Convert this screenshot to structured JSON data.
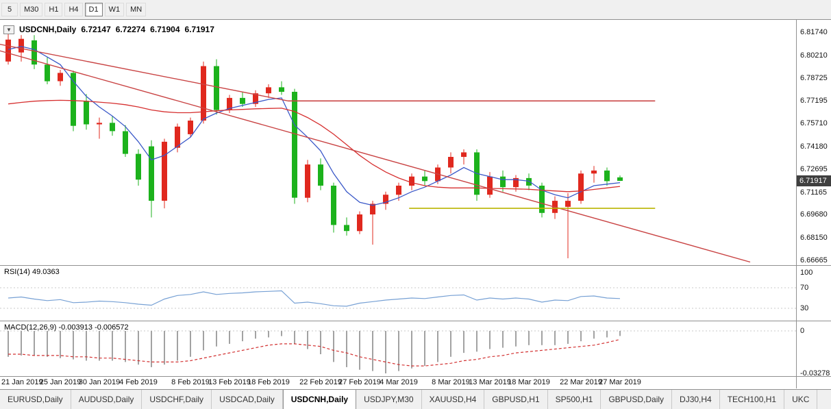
{
  "colors": {
    "candle_up": "#e0281e",
    "candle_down": "#1cb21c",
    "ma_fast": "#3a58c8",
    "ma_slow": "#d62f2f",
    "trendline": "#c94444",
    "hline_red": "#c94444",
    "hline_yellow": "#b9b400",
    "rsi_line": "#76a0d4",
    "macd_bar": "#a2a2a2",
    "macd_signal": "#d23030",
    "badge_bg": "#3f3f3f",
    "chrome_bg": "#f0f0f0"
  },
  "toolbar": {
    "items": [
      {
        "label": "5",
        "selected": false
      },
      {
        "label": "M30",
        "selected": false
      },
      {
        "label": "H1",
        "selected": false
      },
      {
        "label": "H4",
        "selected": false
      },
      {
        "label": "D1",
        "selected": true
      },
      {
        "label": "W1",
        "selected": false
      },
      {
        "label": "MN",
        "selected": false
      }
    ]
  },
  "main_chart": {
    "symbol_period": "USDCNH,Daily",
    "open": "6.72147",
    "high": "6.72274",
    "low": "6.71904",
    "close": "6.71917",
    "price_axis": [
      "6.81740",
      "6.80210",
      "6.78725",
      "6.77195",
      "6.75710",
      "6.74180",
      "6.72695",
      "6.71165",
      "6.69680",
      "6.68150",
      "6.66665"
    ],
    "price_badge": "6.71917",
    "collapse_glyph": "▼"
  },
  "rsi_panel": {
    "label": "RSI(14) 49.0363",
    "axis_labels": [
      "100",
      "70",
      "30"
    ],
    "levels": [
      70,
      30
    ]
  },
  "macd_panel": {
    "label": "MACD(12,26,9) -0.003913 -0.006572",
    "axis_top": "0",
    "axis_bottom": "-0.03278"
  },
  "date_axis": [
    {
      "label": "21 Jan 2019",
      "i": 0
    },
    {
      "label": "25 Jan 2019",
      "i": 4
    },
    {
      "label": "30 Jan 2019",
      "i": 7
    },
    {
      "label": "4 Feb 2019",
      "i": 10
    },
    {
      "label": "8 Feb 2019",
      "i": 14
    },
    {
      "label": "13 Feb 2019",
      "i": 17
    },
    {
      "label": "18 Feb 2019",
      "i": 20
    },
    {
      "label": "22 Feb 2019",
      "i": 24
    },
    {
      "label": "27 Feb 2019",
      "i": 27
    },
    {
      "label": "4 Mar 2019",
      "i": 30
    },
    {
      "label": "8 Mar 2019",
      "i": 34
    },
    {
      "label": "13 Mar 2019",
      "i": 37
    },
    {
      "label": "18 Mar 2019",
      "i": 40
    },
    {
      "label": "22 Mar 2019",
      "i": 44
    },
    {
      "label": "27 Mar 2019",
      "i": 47
    }
  ],
  "tabs": [
    {
      "label": "EURUSD,Daily",
      "selected": false
    },
    {
      "label": "AUDUSD,Daily",
      "selected": false
    },
    {
      "label": "USDCHF,Daily",
      "selected": false
    },
    {
      "label": "USDCAD,Daily",
      "selected": false
    },
    {
      "label": "USDCNH,Daily",
      "selected": true
    },
    {
      "label": "USDJPY,M30",
      "selected": false
    },
    {
      "label": "XAUUSD,H4",
      "selected": false
    },
    {
      "label": "GBPUSD,H1",
      "selected": false
    },
    {
      "label": "SP500,H1",
      "selected": false
    },
    {
      "label": "GBPUSD,Daily",
      "selected": false
    },
    {
      "label": "DJ30,H4",
      "selected": false
    },
    {
      "label": "TECH100,H1",
      "selected": false
    },
    {
      "label": "UKC",
      "selected": false
    }
  ],
  "chart_data": {
    "type": "candlestick",
    "symbol": "USDCNH",
    "timeframe": "Daily",
    "price_range": [
      6.66665,
      6.8174
    ],
    "last_ohlc": {
      "open": 6.72147,
      "high": 6.72274,
      "low": 6.71904,
      "close": 6.71917
    },
    "candles_ohlc": [
      [
        6.798,
        6.8165,
        6.796,
        6.8125
      ],
      [
        6.804,
        6.8155,
        6.798,
        6.813
      ],
      [
        6.812,
        6.8155,
        6.793,
        6.796
      ],
      [
        6.796,
        6.801,
        6.783,
        6.785
      ],
      [
        6.785,
        6.7925,
        6.782,
        6.7905
      ],
      [
        6.7905,
        6.792,
        6.752,
        6.7555
      ],
      [
        6.772,
        6.7765,
        6.753,
        6.7565
      ],
      [
        6.7565,
        6.761,
        6.747,
        6.7575
      ],
      [
        6.7575,
        6.762,
        6.749,
        6.752
      ],
      [
        6.752,
        6.756,
        6.735,
        6.737
      ],
      [
        6.737,
        6.74,
        6.716,
        6.72
      ],
      [
        6.742,
        6.746,
        6.695,
        6.706
      ],
      [
        6.706,
        6.747,
        6.701,
        6.745
      ],
      [
        6.741,
        6.757,
        6.738,
        6.755
      ],
      [
        6.75,
        6.761,
        6.748,
        6.759
      ],
      [
        6.759,
        6.798,
        6.757,
        6.795
      ],
      [
        6.795,
        6.7995,
        6.763,
        6.766
      ],
      [
        6.766,
        6.776,
        6.764,
        6.774
      ],
      [
        6.774,
        6.778,
        6.768,
        6.77
      ],
      [
        6.77,
        6.779,
        6.768,
        6.777
      ],
      [
        6.777,
        6.783,
        6.774,
        6.781
      ],
      [
        6.781,
        6.785,
        6.776,
        6.778
      ],
      [
        6.778,
        6.78,
        6.704,
        6.708
      ],
      [
        6.708,
        6.733,
        6.705,
        6.73
      ],
      [
        6.73,
        6.734,
        6.713,
        6.716
      ],
      [
        6.716,
        6.718,
        6.685,
        6.69
      ],
      [
        6.69,
        6.695,
        6.683,
        6.686
      ],
      [
        6.686,
        6.699,
        6.684,
        6.697
      ],
      [
        6.697,
        6.706,
        6.677,
        6.704
      ],
      [
        6.704,
        6.712,
        6.7,
        6.71
      ],
      [
        6.71,
        6.718,
        6.706,
        6.716
      ],
      [
        6.716,
        6.724,
        6.713,
        6.722
      ],
      [
        6.722,
        6.726,
        6.716,
        6.719
      ],
      [
        6.719,
        6.73,
        6.717,
        6.728
      ],
      [
        6.728,
        6.738,
        6.724,
        6.735
      ],
      [
        6.735,
        6.74,
        6.73,
        6.738
      ],
      [
        6.738,
        6.74,
        6.706,
        6.71
      ],
      [
        6.71,
        6.725,
        6.708,
        6.722
      ],
      [
        6.722,
        6.726,
        6.712,
        6.715
      ],
      [
        6.715,
        6.723,
        6.712,
        6.721
      ],
      [
        6.721,
        6.724,
        6.713,
        6.716
      ],
      [
        6.716,
        6.718,
        6.695,
        6.698
      ],
      [
        6.698,
        6.709,
        6.694,
        6.706
      ],
      [
        6.702,
        6.711,
        6.668,
        6.706
      ],
      [
        6.706,
        6.726,
        6.704,
        6.724
      ],
      [
        6.724,
        6.729,
        6.718,
        6.726
      ],
      [
        6.726,
        6.728,
        6.716,
        6.719
      ],
      [
        6.72147,
        6.72274,
        6.71904,
        6.71917
      ]
    ],
    "ma_fast": [
      6.806,
      6.808,
      6.806,
      6.801,
      6.796,
      6.785,
      6.775,
      6.768,
      6.762,
      6.755,
      6.745,
      6.733,
      6.736,
      6.742,
      6.748,
      6.76,
      6.764,
      6.767,
      6.769,
      6.771,
      6.773,
      6.774,
      6.756,
      6.748,
      6.739,
      6.724,
      6.712,
      6.705,
      6.703,
      6.705,
      6.708,
      6.712,
      6.715,
      6.719,
      6.723,
      6.728,
      6.724,
      6.722,
      6.72,
      6.72,
      6.719,
      6.713,
      6.71,
      6.708,
      6.712,
      6.716,
      6.717,
      6.718
    ],
    "ma_slow": [
      6.77,
      6.771,
      6.7718,
      6.7722,
      6.7724,
      6.7722,
      6.7718,
      6.7712,
      6.7705,
      6.7695,
      6.768,
      6.766,
      6.7648,
      6.7642,
      6.7642,
      6.7648,
      6.7655,
      6.766,
      6.7664,
      6.7668,
      6.767,
      6.7672,
      6.765,
      6.761,
      6.756,
      6.75,
      6.743,
      6.736,
      6.73,
      6.725,
      6.721,
      6.718,
      6.716,
      6.715,
      6.7145,
      6.7145,
      6.7145,
      6.7142,
      6.714,
      6.7138,
      6.7136,
      6.713,
      6.7125,
      6.712,
      6.7125,
      6.7135,
      6.7145,
      6.7155
    ],
    "overlays": {
      "trendlines": [
        {
          "i1": -1,
          "p1": 6.81,
          "i2": 21.5,
          "p2": 6.772
        },
        {
          "i1": -1,
          "p1": 6.806,
          "i2": 57.0,
          "p2": 6.6655
        }
      ],
      "hlines": [
        {
          "price": 6.772,
          "i1": 21.5,
          "i2": 49.7,
          "color": "red"
        },
        {
          "price": 6.701,
          "i1": 30.8,
          "i2": 49.7,
          "color": "yellow"
        }
      ]
    },
    "rsi": {
      "period": 14,
      "current": 49.0363,
      "range": [
        0,
        100
      ],
      "levels": [
        70,
        30
      ],
      "values": [
        50,
        52,
        48,
        45,
        47,
        41,
        42,
        44,
        43,
        41,
        38,
        36,
        48,
        55,
        57,
        62,
        57,
        59,
        60,
        62,
        63,
        64,
        40,
        42,
        39,
        35,
        34,
        40,
        43,
        46,
        48,
        50,
        49,
        52,
        55,
        56,
        46,
        50,
        48,
        50,
        48,
        42,
        46,
        45,
        53,
        54,
        50,
        49
      ]
    },
    "macd": {
      "fast": 12,
      "slow": 26,
      "signal_period": 9,
      "current_macd": -0.003913,
      "current_signal": -0.006572,
      "range": [
        -0.03278,
        0
      ],
      "hist": [
        -0.02,
        -0.019,
        -0.019,
        -0.02,
        -0.021,
        -0.022,
        -0.023,
        -0.023,
        -0.023,
        -0.024,
        -0.026,
        -0.028,
        -0.026,
        -0.023,
        -0.02,
        -0.015,
        -0.012,
        -0.01,
        -0.008,
        -0.006,
        -0.005,
        -0.004,
        -0.01,
        -0.014,
        -0.018,
        -0.024,
        -0.028,
        -0.03,
        -0.031,
        -0.0328,
        -0.031,
        -0.029,
        -0.027,
        -0.024,
        -0.02,
        -0.017,
        -0.016,
        -0.014,
        -0.013,
        -0.012,
        -0.011,
        -0.011,
        -0.011,
        -0.01,
        -0.008,
        -0.006,
        -0.005,
        -0.0039
      ],
      "signal": [
        -0.018,
        -0.018,
        -0.019,
        -0.019,
        -0.019,
        -0.02,
        -0.02,
        -0.021,
        -0.021,
        -0.022,
        -0.023,
        -0.024,
        -0.024,
        -0.024,
        -0.023,
        -0.021,
        -0.019,
        -0.017,
        -0.015,
        -0.013,
        -0.011,
        -0.01,
        -0.01,
        -0.011,
        -0.012,
        -0.015,
        -0.017,
        -0.02,
        -0.022,
        -0.024,
        -0.026,
        -0.027,
        -0.027,
        -0.026,
        -0.025,
        -0.023,
        -0.022,
        -0.02,
        -0.019,
        -0.017,
        -0.016,
        -0.015,
        -0.014,
        -0.013,
        -0.012,
        -0.011,
        -0.009,
        -0.0066
      ]
    }
  }
}
